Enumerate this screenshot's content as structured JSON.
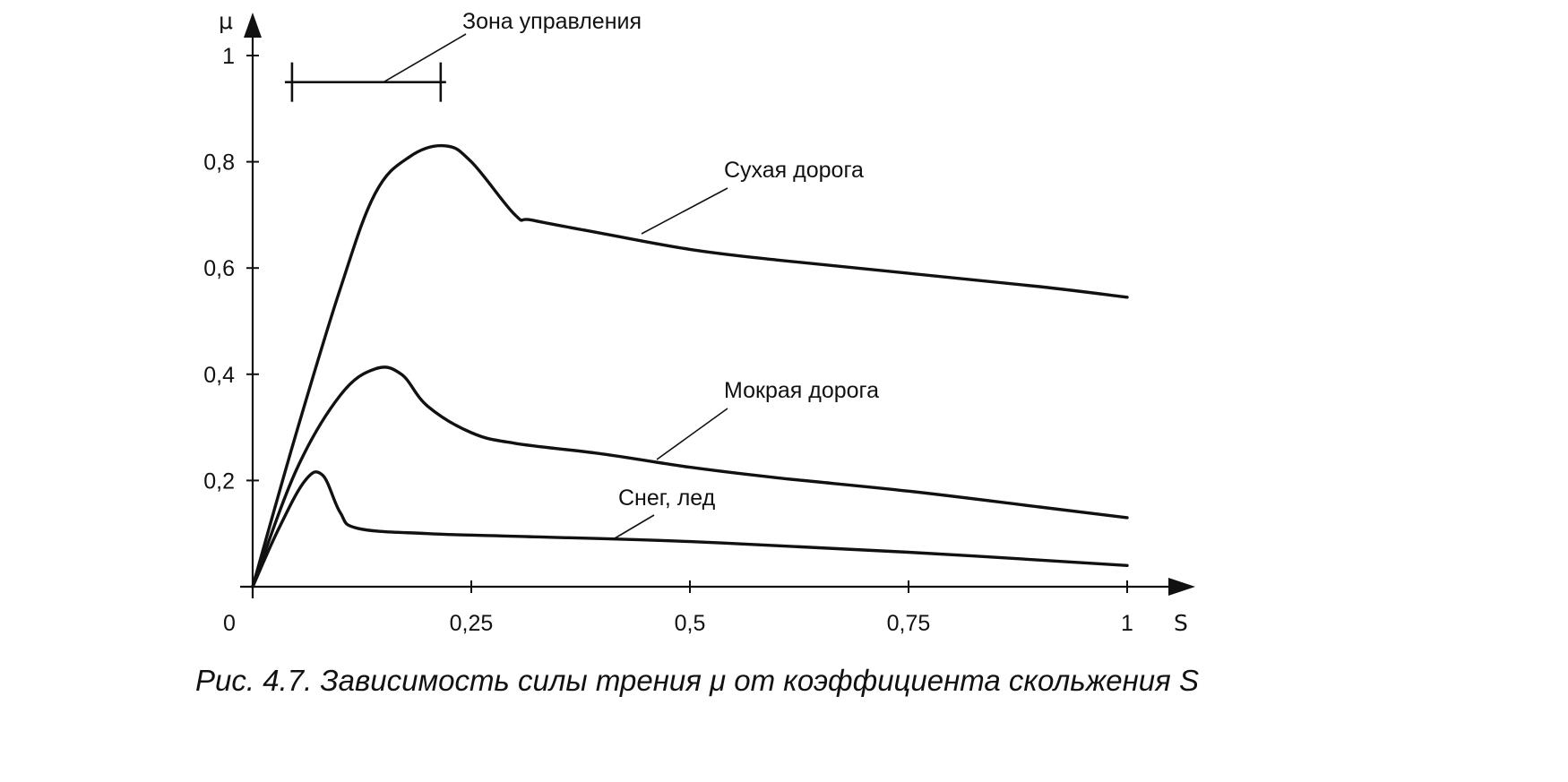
{
  "chart_data": {
    "type": "line",
    "x_axis": {
      "label": "S",
      "range": [
        0,
        1
      ],
      "ticks": [
        0,
        0.25,
        0.5,
        0.75,
        1
      ],
      "tick_labels": [
        "0",
        "0,25",
        "0,5",
        "0,75",
        "1"
      ]
    },
    "y_axis": {
      "label": "μ",
      "range": [
        0,
        1
      ],
      "ticks": [
        0.2,
        0.4,
        0.6,
        0.8,
        1
      ],
      "tick_labels": [
        "0,2",
        "0,4",
        "0,6",
        "0,8",
        "1"
      ]
    },
    "series": [
      {
        "name": "Сухая дорога",
        "x": [
          0,
          0.05,
          0.1,
          0.14,
          0.18,
          0.22,
          0.25,
          0.3,
          0.32,
          0.4,
          0.5,
          0.6,
          0.75,
          0.9,
          1.0
        ],
        "y": [
          0,
          0.29,
          0.56,
          0.74,
          0.81,
          0.83,
          0.8,
          0.7,
          0.69,
          0.665,
          0.635,
          0.615,
          0.59,
          0.565,
          0.545
        ]
      },
      {
        "name": "Мокрая дорога",
        "x": [
          0,
          0.05,
          0.1,
          0.14,
          0.17,
          0.2,
          0.25,
          0.3,
          0.4,
          0.5,
          0.6,
          0.75,
          0.9,
          1.0
        ],
        "y": [
          0,
          0.22,
          0.36,
          0.41,
          0.4,
          0.34,
          0.29,
          0.27,
          0.25,
          0.225,
          0.205,
          0.18,
          0.15,
          0.13
        ]
      },
      {
        "name": "Снег, лед",
        "x": [
          0,
          0.03,
          0.06,
          0.08,
          0.1,
          0.12,
          0.2,
          0.3,
          0.5,
          0.75,
          1.0
        ],
        "y": [
          0,
          0.11,
          0.2,
          0.21,
          0.14,
          0.11,
          0.1,
          0.095,
          0.085,
          0.065,
          0.04
        ]
      }
    ],
    "annotations": {
      "control_zone": {
        "label": "Зона управления",
        "x_start": 0.045,
        "x_end": 0.215,
        "y": 0.95
      }
    },
    "caption": "Рис. 4.7. Зависимость силы трения μ от коэффициента скольжения S",
    "grid": false,
    "legend": "none"
  }
}
